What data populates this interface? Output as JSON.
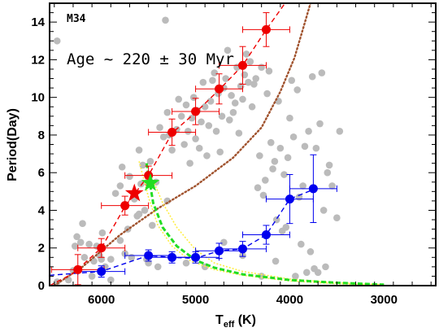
{
  "chart_data": {
    "type": "scatter",
    "panel_label": "M34",
    "annotation": "Age ~ 220 ± 30 Myr",
    "xlabel": "T",
    "xlabel_sub": "eff",
    "xlabel_unit": " (K)",
    "ylabel": "Period(Day)",
    "x_inverted": true,
    "xlim": [
      6550,
      2450
    ],
    "ylim": [
      0,
      15
    ],
    "x_ticks": [
      6000,
      5000,
      4000,
      3000
    ],
    "y_ticks": [
      0,
      2,
      4,
      6,
      8,
      10,
      12,
      14
    ],
    "x_tick_labels": [
      "6000",
      "5000",
      "4000",
      "3000"
    ],
    "y_tick_labels": [
      "0",
      "2",
      "4",
      "6",
      "8",
      "10",
      "12",
      "14"
    ],
    "colors": {
      "gray": "#bbbbbb",
      "red": "#ee0000",
      "blue": "#0000ee",
      "green": "#22dd22",
      "yellow": "#ffee44",
      "brown": "#a0522d"
    },
    "gray_points": [
      [
        6470,
        13.0
      ],
      [
        6470,
        0.2
      ],
      [
        6350,
        0.3
      ],
      [
        6300,
        0.8
      ],
      [
        6280,
        2.1
      ],
      [
        6260,
        2.6
      ],
      [
        6220,
        2.3
      ],
      [
        6200,
        3.3
      ],
      [
        6180,
        1.5
      ],
      [
        6130,
        2.2
      ],
      [
        6100,
        0.5
      ],
      [
        6080,
        1.3
      ],
      [
        6050,
        2.1
      ],
      [
        6020,
        1.6
      ],
      [
        6010,
        0.8
      ],
      [
        6000,
        1.4
      ],
      [
        5990,
        2.8
      ],
      [
        5960,
        1.0
      ],
      [
        5900,
        1.4
      ],
      [
        5850,
        4.9
      ],
      [
        5800,
        5.3
      ],
      [
        5780,
        6.3
      ],
      [
        5750,
        1.7
      ],
      [
        5720,
        3.0
      ],
      [
        5700,
        5.8
      ],
      [
        5680,
        1.5
      ],
      [
        5650,
        4.6
      ],
      [
        5620,
        3.7
      ],
      [
        5600,
        7.2
      ],
      [
        5580,
        5.4
      ],
      [
        5560,
        6.4
      ],
      [
        5540,
        4.0
      ],
      [
        5520,
        1.4
      ],
      [
        5500,
        1.2
      ],
      [
        5480,
        6.6
      ],
      [
        5460,
        3.2
      ],
      [
        5420,
        5.5
      ],
      [
        5380,
        8.4
      ],
      [
        5340,
        7.9
      ],
      [
        5320,
        14.1
      ],
      [
        5300,
        9.2
      ],
      [
        5280,
        8.0
      ],
      [
        5250,
        7.2
      ],
      [
        5200,
        8.3
      ],
      [
        5180,
        9.9
      ],
      [
        5150,
        9.0
      ],
      [
        5120,
        7.5
      ],
      [
        5100,
        9.6
      ],
      [
        5080,
        8.2
      ],
      [
        5060,
        6.5
      ],
      [
        5040,
        8.9
      ],
      [
        5020,
        10.0
      ],
      [
        5000,
        7.8
      ],
      [
        4980,
        9.3
      ],
      [
        4960,
        7.3
      ],
      [
        4940,
        8.7
      ],
      [
        4920,
        10.8
      ],
      [
        4900,
        9.5
      ],
      [
        4880,
        6.9
      ],
      [
        4860,
        8.5
      ],
      [
        4840,
        9.8
      ],
      [
        4820,
        10.9
      ],
      [
        4800,
        11.3
      ],
      [
        4780,
        8.2
      ],
      [
        4760,
        10.2
      ],
      [
        4740,
        7.1
      ],
      [
        4720,
        9.0
      ],
      [
        4700,
        10.5
      ],
      [
        4680,
        11.0
      ],
      [
        4660,
        12.5
      ],
      [
        4640,
        8.8
      ],
      [
        4620,
        10.1
      ],
      [
        4600,
        9.2
      ],
      [
        4580,
        9.7
      ],
      [
        4560,
        11.6
      ],
      [
        4540,
        8.1
      ],
      [
        4520,
        10.6
      ],
      [
        4500,
        9.9
      ],
      [
        4480,
        11.2
      ],
      [
        4460,
        12.3
      ],
      [
        4440,
        10.8
      ],
      [
        4420,
        11.9
      ],
      [
        4400,
        9.5
      ],
      [
        4380,
        10.7
      ],
      [
        4360,
        11.0
      ],
      [
        4340,
        5.2
      ],
      [
        4320,
        6.9
      ],
      [
        4300,
        11.6
      ],
      [
        4280,
        4.8
      ],
      [
        4260,
        5.6
      ],
      [
        4240,
        10.2
      ],
      [
        4220,
        11.4
      ],
      [
        4200,
        7.6
      ],
      [
        4180,
        6.2
      ],
      [
        4160,
        6.6
      ],
      [
        4140,
        3.5
      ],
      [
        4120,
        9.8
      ],
      [
        4100,
        7.3
      ],
      [
        4080,
        2.9
      ],
      [
        4060,
        5.9
      ],
      [
        4040,
        3.1
      ],
      [
        4020,
        6.8
      ],
      [
        4000,
        8.9
      ],
      [
        3980,
        10.9
      ],
      [
        3960,
        7.9
      ],
      [
        3940,
        0.5
      ],
      [
        3920,
        10.4
      ],
      [
        3900,
        4.7
      ],
      [
        3880,
        2.2
      ],
      [
        3860,
        5.3
      ],
      [
        3840,
        7.4
      ],
      [
        3820,
        0.7
      ],
      [
        3800,
        8.2
      ],
      [
        3780,
        1.8
      ],
      [
        3760,
        11.1
      ],
      [
        3740,
        0.9
      ],
      [
        3720,
        7.3
      ],
      [
        3700,
        0.7
      ],
      [
        3680,
        8.6
      ],
      [
        3660,
        11.3
      ],
      [
        3640,
        4.0
      ],
      [
        3620,
        1.0
      ],
      [
        3600,
        6.0
      ],
      [
        3580,
        6.4
      ],
      [
        3550,
        5.3
      ],
      [
        3500,
        3.6
      ],
      [
        3470,
        8.2
      ],
      [
        5900,
        0.3
      ],
      [
        5800,
        2.4
      ],
      [
        5600,
        3.8
      ],
      [
        5400,
        1.0
      ],
      [
        5300,
        4.5
      ],
      [
        5100,
        1.2
      ],
      [
        4900,
        1.0
      ],
      [
        4700,
        2.3
      ],
      [
        4500,
        1.6
      ],
      [
        4300,
        0.5
      ],
      [
        4150,
        1.3
      ]
    ],
    "red_points": [
      {
        "x": 6250,
        "y": 0.85,
        "xerr": 280,
        "yerr": 0.8
      },
      {
        "x": 6000,
        "y": 2.0,
        "xerr": 250,
        "yerr": 0.5
      },
      {
        "x": 5750,
        "y": 4.25,
        "xerr": 250,
        "yerr": 0.5
      },
      {
        "x": 5500,
        "y": 5.85,
        "xerr": 250,
        "yerr": 0.5
      },
      {
        "x": 5250,
        "y": 8.15,
        "xerr": 250,
        "yerr": 0.7
      },
      {
        "x": 5000,
        "y": 9.25,
        "xerr": 250,
        "yerr": 0.7
      },
      {
        "x": 4750,
        "y": 10.45,
        "xerr": 250,
        "yerr": 0.8
      },
      {
        "x": 4500,
        "y": 11.7,
        "xerr": 250,
        "yerr": 1.0
      },
      {
        "x": 4250,
        "y": 13.6,
        "xerr": 250,
        "yerr": 0.9
      }
    ],
    "blue_points": [
      {
        "x": 6000,
        "y": 0.75,
        "xerr": 250,
        "yerr": 0.3
      },
      {
        "x": 5500,
        "y": 1.6,
        "xerr": 250,
        "yerr": 0.3
      },
      {
        "x": 5250,
        "y": 1.5,
        "xerr": 250,
        "yerr": 0.3
      },
      {
        "x": 5000,
        "y": 1.5,
        "xerr": 250,
        "yerr": 0.3
      },
      {
        "x": 4750,
        "y": 1.85,
        "xerr": 250,
        "yerr": 0.4
      },
      {
        "x": 4500,
        "y": 1.95,
        "xerr": 250,
        "yerr": 0.4
      },
      {
        "x": 4250,
        "y": 2.7,
        "xerr": 250,
        "yerr": 0.5
      },
      {
        "x": 4000,
        "y": 4.6,
        "xerr": 250,
        "yerr": 1.3
      },
      {
        "x": 3750,
        "y": 5.15,
        "xerr": 250,
        "yerr": 1.8
      }
    ],
    "stars": [
      {
        "x": 5650,
        "y": 4.9,
        "color": "red"
      },
      {
        "x": 5480,
        "y": 5.45,
        "color": "green"
      }
    ],
    "red_fit": [
      [
        6550,
        0.0
      ],
      [
        6300,
        0.65
      ],
      [
        6000,
        2.0
      ],
      [
        5750,
        4.2
      ],
      [
        5500,
        5.85
      ],
      [
        5250,
        8.1
      ],
      [
        5000,
        9.2
      ],
      [
        4750,
        10.4
      ],
      [
        4500,
        11.7
      ],
      [
        4250,
        13.6
      ],
      [
        4050,
        15.0
      ]
    ],
    "blue_fit": [
      [
        6550,
        0.55
      ],
      [
        6000,
        0.75
      ],
      [
        5500,
        1.6
      ],
      [
        5250,
        1.5
      ],
      [
        5000,
        1.45
      ],
      [
        4750,
        1.85
      ],
      [
        4500,
        1.95
      ],
      [
        4250,
        2.7
      ],
      [
        4000,
        4.6
      ],
      [
        3750,
        5.1
      ]
    ],
    "brown_fit": [
      [
        6500,
        0.0
      ],
      [
        6200,
        1.0
      ],
      [
        5800,
        2.7
      ],
      [
        5400,
        4.1
      ],
      [
        5000,
        5.3
      ],
      [
        4600,
        6.8
      ],
      [
        4300,
        8.4
      ],
      [
        4100,
        10.3
      ],
      [
        3950,
        12.1
      ],
      [
        3850,
        13.8
      ],
      [
        3780,
        15.0
      ]
    ],
    "green_fit": [
      [
        5520,
        6.5
      ],
      [
        5450,
        4.4
      ],
      [
        5350,
        3.1
      ],
      [
        5200,
        2.1
      ],
      [
        5000,
        1.35
      ],
      [
        4800,
        0.95
      ],
      [
        4500,
        0.6
      ],
      [
        4000,
        0.3
      ],
      [
        3500,
        0.15
      ],
      [
        3000,
        0.05
      ]
    ],
    "yellow_fit_upper": [
      [
        5450,
        5.6
      ],
      [
        5350,
        4.4
      ],
      [
        5200,
        3.1
      ],
      [
        5000,
        1.9
      ],
      [
        4800,
        1.2
      ],
      [
        4500,
        0.75
      ],
      [
        4000,
        0.35
      ],
      [
        3500,
        0.15
      ],
      [
        3000,
        0.05
      ]
    ],
    "yellow_fit_lower": [
      [
        5600,
        6.6
      ],
      [
        5500,
        4.7
      ],
      [
        5400,
        3.2
      ],
      [
        5250,
        2.1
      ],
      [
        5050,
        1.3
      ],
      [
        4800,
        0.85
      ],
      [
        4500,
        0.55
      ],
      [
        4000,
        0.25
      ],
      [
        3500,
        0.1
      ],
      [
        3000,
        0.03
      ]
    ]
  }
}
